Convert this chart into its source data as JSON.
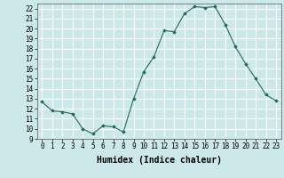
{
  "x": [
    0,
    1,
    2,
    3,
    4,
    5,
    6,
    7,
    8,
    9,
    10,
    11,
    12,
    13,
    14,
    15,
    16,
    17,
    18,
    19,
    20,
    21,
    22,
    23
  ],
  "y": [
    12.7,
    11.8,
    11.7,
    11.5,
    10.0,
    9.5,
    10.3,
    10.2,
    9.7,
    13.0,
    15.7,
    17.2,
    19.8,
    19.7,
    21.5,
    22.2,
    22.1,
    22.2,
    20.4,
    18.2,
    16.5,
    15.0,
    13.4,
    12.8
  ],
  "xlabel": "Humidex (Indice chaleur)",
  "ylabel": "",
  "title": "",
  "xlim": [
    -0.5,
    23.5
  ],
  "ylim": [
    9,
    22.5
  ],
  "yticks": [
    9,
    10,
    11,
    12,
    13,
    14,
    15,
    16,
    17,
    18,
    19,
    20,
    21,
    22
  ],
  "xticks": [
    0,
    1,
    2,
    3,
    4,
    5,
    6,
    7,
    8,
    9,
    10,
    11,
    12,
    13,
    14,
    15,
    16,
    17,
    18,
    19,
    20,
    21,
    22,
    23
  ],
  "line_color": "#1e6b5e",
  "marker": "D",
  "marker_size": 1.8,
  "bg_color": "#cce8e8",
  "grid_color": "#ffffff",
  "xlabel_fontsize": 7,
  "tick_fontsize": 5.5
}
